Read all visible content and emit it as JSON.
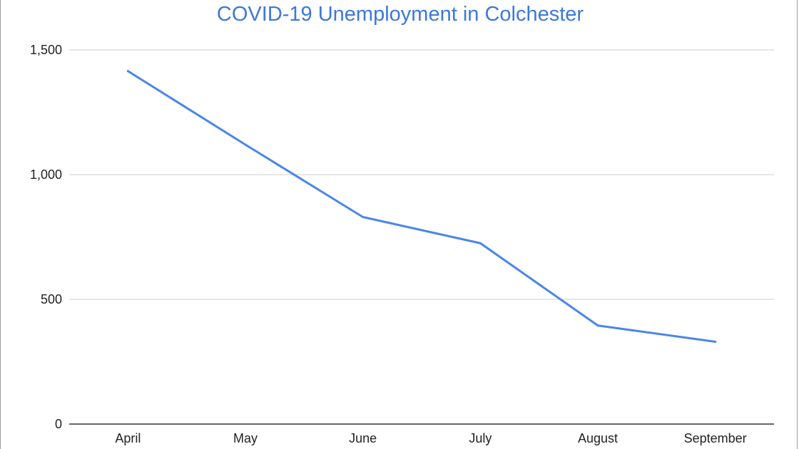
{
  "chart_data": {
    "type": "line",
    "title": "COVID-19 Unemployment in Colchester",
    "xlabel": "",
    "ylabel": "",
    "categories": [
      "April",
      "May",
      "June",
      "July",
      "August",
      "September"
    ],
    "series": [
      {
        "values": [
          1415,
          1120,
          830,
          725,
          395,
          330
        ]
      }
    ],
    "ylim": [
      0,
      1500
    ],
    "yticks": [
      0,
      500,
      1000,
      1500
    ],
    "ytick_labels": [
      "0",
      "500",
      "1,000",
      "1,500"
    ],
    "grid": true,
    "legend": "none",
    "colors": {
      "line": "#4a86e8",
      "title": "#3c78d8",
      "grid": "#cccccc",
      "axis": "#333333"
    }
  }
}
